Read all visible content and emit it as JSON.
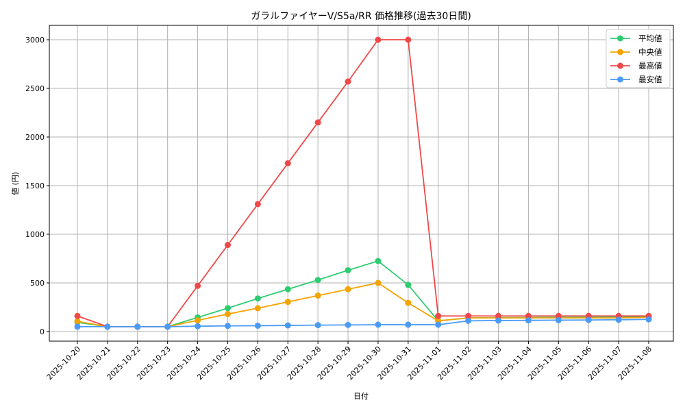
{
  "chart_data": {
    "type": "line",
    "title": "ガラルファイヤーV/S5a/RR 価格推移(過去30日間)",
    "xlabel": "日付",
    "ylabel": "値 (円)",
    "ylim": [
      -100,
      3130
    ],
    "yticks": [
      0,
      500,
      1000,
      1500,
      2000,
      2500,
      3000
    ],
    "grid": true,
    "legend_position": "upper right",
    "categories": [
      "2025-10-20",
      "2025-10-21",
      "2025-10-22",
      "2025-10-23",
      "2025-10-24",
      "2025-10-25",
      "2025-10-26",
      "2025-10-27",
      "2025-10-28",
      "2025-10-29",
      "2025-10-30",
      "2025-10-31",
      "2025-11-01",
      "2025-11-02",
      "2025-11-03",
      "2025-11-04",
      "2025-11-05",
      "2025-11-06",
      "2025-11-07",
      "2025-11-08"
    ],
    "series": [
      {
        "name": "平均値",
        "color": "#2ecc71",
        "values": [
          95,
          50,
          50,
          50,
          145,
          240,
          340,
          435,
          530,
          630,
          725,
          480,
          110,
          140,
          142,
          144,
          146,
          147,
          148,
          150
        ]
      },
      {
        "name": "中央値",
        "color": "#f5a300",
        "values": [
          105,
          50,
          50,
          50,
          115,
          180,
          240,
          305,
          370,
          435,
          500,
          295,
          110,
          140,
          140,
          140,
          140,
          140,
          140,
          145
        ]
      },
      {
        "name": "最高値",
        "color": "#f04848",
        "values": [
          160,
          50,
          50,
          50,
          470,
          890,
          1310,
          1730,
          2150,
          2570,
          3000,
          3000,
          160,
          160,
          160,
          160,
          160,
          160,
          160,
          160
        ]
      },
      {
        "name": "最安値",
        "color": "#4a9bf5",
        "values": [
          50,
          50,
          50,
          50,
          55,
          58,
          60,
          63,
          66,
          68,
          70,
          70,
          70,
          110,
          113,
          115,
          117,
          119,
          121,
          125
        ]
      }
    ]
  }
}
